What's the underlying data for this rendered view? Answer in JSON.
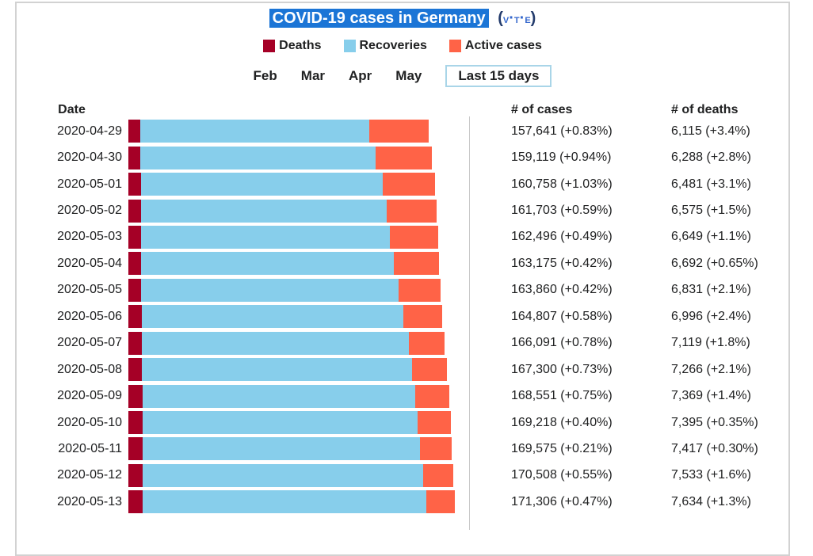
{
  "title": {
    "text": "COVID-19 cases in Germany",
    "vte": {
      "open": "(",
      "v": "v",
      "sep1": "·",
      "t": "t",
      "sep2": "·",
      "e": "e",
      "close": ")"
    }
  },
  "legend": {
    "items": [
      {
        "label": "Deaths",
        "color": "#A50026"
      },
      {
        "label": "Recoveries",
        "color": "#87CEEB"
      },
      {
        "label": "Active cases",
        "color": "#FF6347"
      }
    ]
  },
  "tabs": {
    "months": [
      "Feb",
      "Mar",
      "Apr",
      "May"
    ],
    "range_button": "Last 15 days"
  },
  "table_headers": {
    "date": "Date",
    "cases": "# of cases",
    "deaths": "# of deaths"
  },
  "chart_data": {
    "type": "bar",
    "orientation": "horizontal",
    "stacked": true,
    "title": "COVID-19 cases in Germany",
    "series_order": [
      "Deaths",
      "Recoveries",
      "Active cases"
    ],
    "colors": {
      "deaths": "#A50026",
      "recoveries": "#87CEEB",
      "active": "#FF6347"
    },
    "x_max": 171306,
    "rows": [
      {
        "date": "2020-04-29",
        "cases": 157641,
        "deaths": 6115,
        "recoveries_est": 120400,
        "cases_label": "157,641 (+0.83%)",
        "deaths_label": "6,115 (+3.4%)"
      },
      {
        "date": "2020-04-30",
        "cases": 159119,
        "deaths": 6288,
        "recoveries_est": 123500,
        "cases_label": "159,119 (+0.94%)",
        "deaths_label": "6,288 (+2.8%)"
      },
      {
        "date": "2020-05-01",
        "cases": 160758,
        "deaths": 6481,
        "recoveries_est": 126900,
        "cases_label": "160,758 (+1.03%)",
        "deaths_label": "6,481 (+3.1%)"
      },
      {
        "date": "2020-05-02",
        "cases": 161703,
        "deaths": 6575,
        "recoveries_est": 129000,
        "cases_label": "161,703 (+0.59%)",
        "deaths_label": "6,575 (+1.5%)"
      },
      {
        "date": "2020-05-03",
        "cases": 162496,
        "deaths": 6649,
        "recoveries_est": 130600,
        "cases_label": "162,496 (+0.49%)",
        "deaths_label": "6,649 (+1.1%)"
      },
      {
        "date": "2020-05-04",
        "cases": 163175,
        "deaths": 6692,
        "recoveries_est": 132700,
        "cases_label": "163,175 (+0.42%)",
        "deaths_label": "6,692 (+0.65%)"
      },
      {
        "date": "2020-05-05",
        "cases": 163860,
        "deaths": 6831,
        "recoveries_est": 135000,
        "cases_label": "163,860 (+0.42%)",
        "deaths_label": "6,831 (+2.1%)"
      },
      {
        "date": "2020-05-06",
        "cases": 164807,
        "deaths": 6996,
        "recoveries_est": 137400,
        "cases_label": "164,807 (+0.58%)",
        "deaths_label": "6,996 (+2.4%)"
      },
      {
        "date": "2020-05-07",
        "cases": 166091,
        "deaths": 7119,
        "recoveries_est": 140200,
        "cases_label": "166,091 (+0.78%)",
        "deaths_label": "7,119 (+1.8%)"
      },
      {
        "date": "2020-05-08",
        "cases": 167300,
        "deaths": 7266,
        "recoveries_est": 141700,
        "cases_label": "167,300 (+0.73%)",
        "deaths_label": "7,266 (+2.1%)"
      },
      {
        "date": "2020-05-09",
        "cases": 168551,
        "deaths": 7369,
        "recoveries_est": 143300,
        "cases_label": "168,551 (+0.75%)",
        "deaths_label": "7,369 (+1.4%)"
      },
      {
        "date": "2020-05-10",
        "cases": 169218,
        "deaths": 7395,
        "recoveries_est": 144400,
        "cases_label": "169,218 (+0.40%)",
        "deaths_label": "7,395 (+0.35%)"
      },
      {
        "date": "2020-05-11",
        "cases": 169575,
        "deaths": 7417,
        "recoveries_est": 145500,
        "cases_label": "169,575 (+0.21%)",
        "deaths_label": "7,417 (+0.30%)"
      },
      {
        "date": "2020-05-12",
        "cases": 170508,
        "deaths": 7533,
        "recoveries_est": 147200,
        "cases_label": "170,508 (+0.55%)",
        "deaths_label": "7,533 (+1.6%)"
      },
      {
        "date": "2020-05-13",
        "cases": 171306,
        "deaths": 7634,
        "recoveries_est": 148700,
        "cases_label": "171,306 (+0.47%)",
        "deaths_label": "7,634 (+1.3%)"
      }
    ]
  }
}
